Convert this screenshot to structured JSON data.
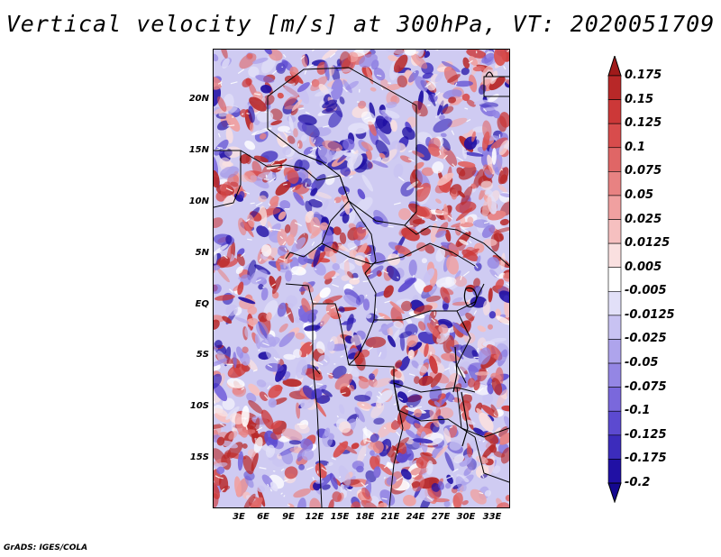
{
  "title": "Vertical velocity [m/s] at 300hPa, VT: 2020051709",
  "footer": "GrADS: IGES/COLA",
  "map": {
    "field": "Vertical velocity",
    "units": "m/s",
    "level": "300hPa",
    "valid_time": "2020051709",
    "lon_range": [
      -1,
      35.5
    ],
    "lat_range": [
      -19,
      24.5
    ],
    "lat_ticks": [
      "20N",
      "15N",
      "10N",
      "5N",
      "EQ",
      "5S",
      "10S",
      "15S"
    ],
    "lon_ticks": [
      "3E",
      "6E",
      "9E",
      "12E",
      "15E",
      "18E",
      "21E",
      "24E",
      "27E",
      "30E",
      "33E"
    ]
  },
  "colorbar": {
    "labels": [
      "0.175",
      "0.15",
      "0.125",
      "0.1",
      "0.075",
      "0.05",
      "0.025",
      "0.0125",
      "0.005",
      "-0.005",
      "-0.0125",
      "-0.025",
      "-0.05",
      "-0.075",
      "-0.1",
      "-0.125",
      "-0.175",
      "-0.2"
    ],
    "colors": [
      "#a01a1a",
      "#b82828",
      "#cc3838",
      "#d84c4c",
      "#e06666",
      "#e88282",
      "#f0a0a0",
      "#f6c0c0",
      "#fae0e0",
      "#ffffff",
      "#e2e0f8",
      "#c8c2f2",
      "#aea4ec",
      "#9486e4",
      "#7a68dc",
      "#5c4ad0",
      "#3c2cbc",
      "#2010a4",
      "#140890"
    ]
  },
  "colors": {
    "warm": "#d84c4c",
    "cool": "#5c4ad0",
    "neutral": "#ffffff",
    "border": "#000000"
  }
}
